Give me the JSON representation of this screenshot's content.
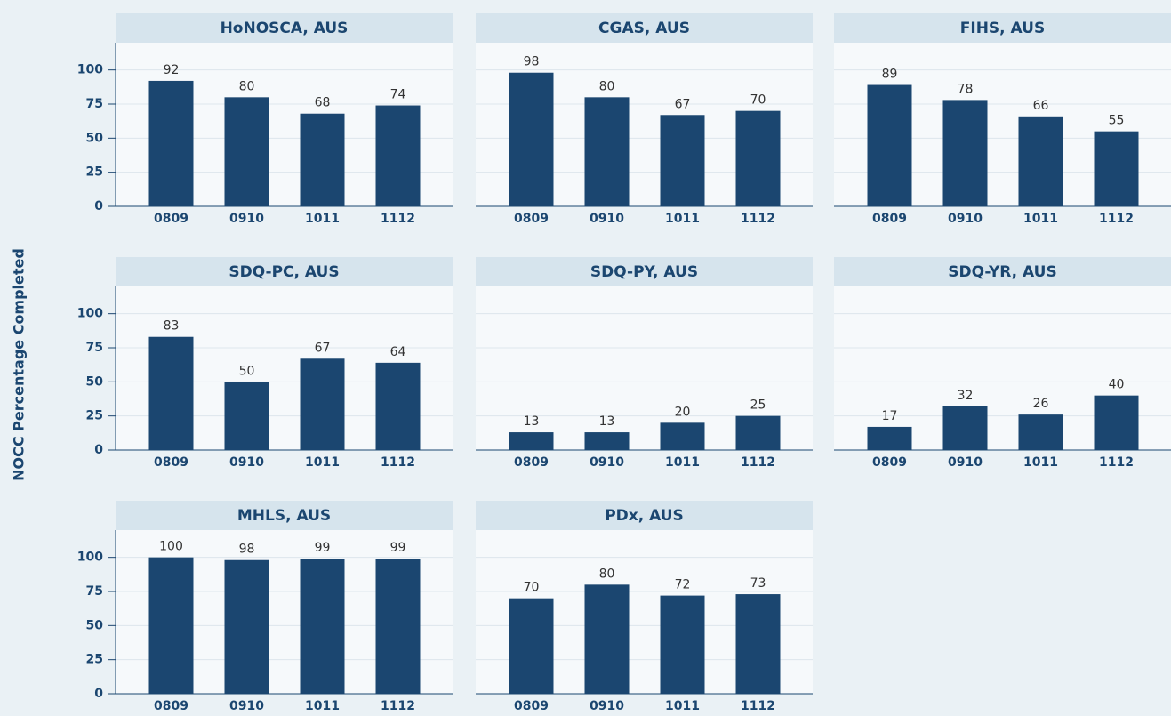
{
  "ylabel": "NOCC Percentage Completed",
  "chart_data": [
    {
      "type": "bar",
      "title": "HoNOSCA, AUS",
      "categories": [
        "0809",
        "0910",
        "1011",
        "1112"
      ],
      "values": [
        92,
        80,
        68,
        74
      ],
      "color": "#1b4670",
      "ylim": [
        0,
        120
      ],
      "yticks": [
        0,
        25,
        50,
        75,
        100
      ],
      "grid": true
    },
    {
      "type": "bar",
      "title": "CGAS, AUS",
      "categories": [
        "0809",
        "0910",
        "1011",
        "1112"
      ],
      "values": [
        98,
        80,
        67,
        70
      ],
      "color": "#1b4670",
      "ylim": [
        0,
        120
      ],
      "yticks": [
        0,
        25,
        50,
        75,
        100
      ],
      "grid": true
    },
    {
      "type": "bar",
      "title": "FIHS, AUS",
      "categories": [
        "0809",
        "0910",
        "1011",
        "1112"
      ],
      "values": [
        89,
        78,
        66,
        55
      ],
      "color": "#1b4670",
      "ylim": [
        0,
        120
      ],
      "yticks": [
        0,
        25,
        50,
        75,
        100
      ],
      "grid": true
    },
    {
      "type": "bar",
      "title": "SDQ-PC, AUS",
      "categories": [
        "0809",
        "0910",
        "1011",
        "1112"
      ],
      "values": [
        83,
        50,
        67,
        64
      ],
      "color": "#1b4670",
      "ylim": [
        0,
        120
      ],
      "yticks": [
        0,
        25,
        50,
        75,
        100
      ],
      "grid": true
    },
    {
      "type": "bar",
      "title": "SDQ-PY, AUS",
      "categories": [
        "0809",
        "0910",
        "1011",
        "1112"
      ],
      "values": [
        13,
        13,
        20,
        25
      ],
      "color": "#1b4670",
      "ylim": [
        0,
        120
      ],
      "yticks": [
        0,
        25,
        50,
        75,
        100
      ],
      "grid": true
    },
    {
      "type": "bar",
      "title": "SDQ-YR, AUS",
      "categories": [
        "0809",
        "0910",
        "1011",
        "1112"
      ],
      "values": [
        17,
        32,
        26,
        40
      ],
      "color": "#1b4670",
      "ylim": [
        0,
        120
      ],
      "yticks": [
        0,
        25,
        50,
        75,
        100
      ],
      "grid": true
    },
    {
      "type": "bar",
      "title": "MHLS, AUS",
      "categories": [
        "0809",
        "0910",
        "1011",
        "1112"
      ],
      "values": [
        100,
        98,
        99,
        99
      ],
      "color": "#1b4670",
      "ylim": [
        0,
        120
      ],
      "yticks": [
        0,
        25,
        50,
        75,
        100
      ],
      "grid": true
    },
    {
      "type": "bar",
      "title": "PDx, AUS",
      "categories": [
        "0809",
        "0910",
        "1011",
        "1112"
      ],
      "values": [
        70,
        80,
        72,
        73
      ],
      "color": "#1b4670",
      "ylim": [
        0,
        120
      ],
      "yticks": [
        0,
        25,
        50,
        75,
        100
      ],
      "grid": true
    }
  ]
}
